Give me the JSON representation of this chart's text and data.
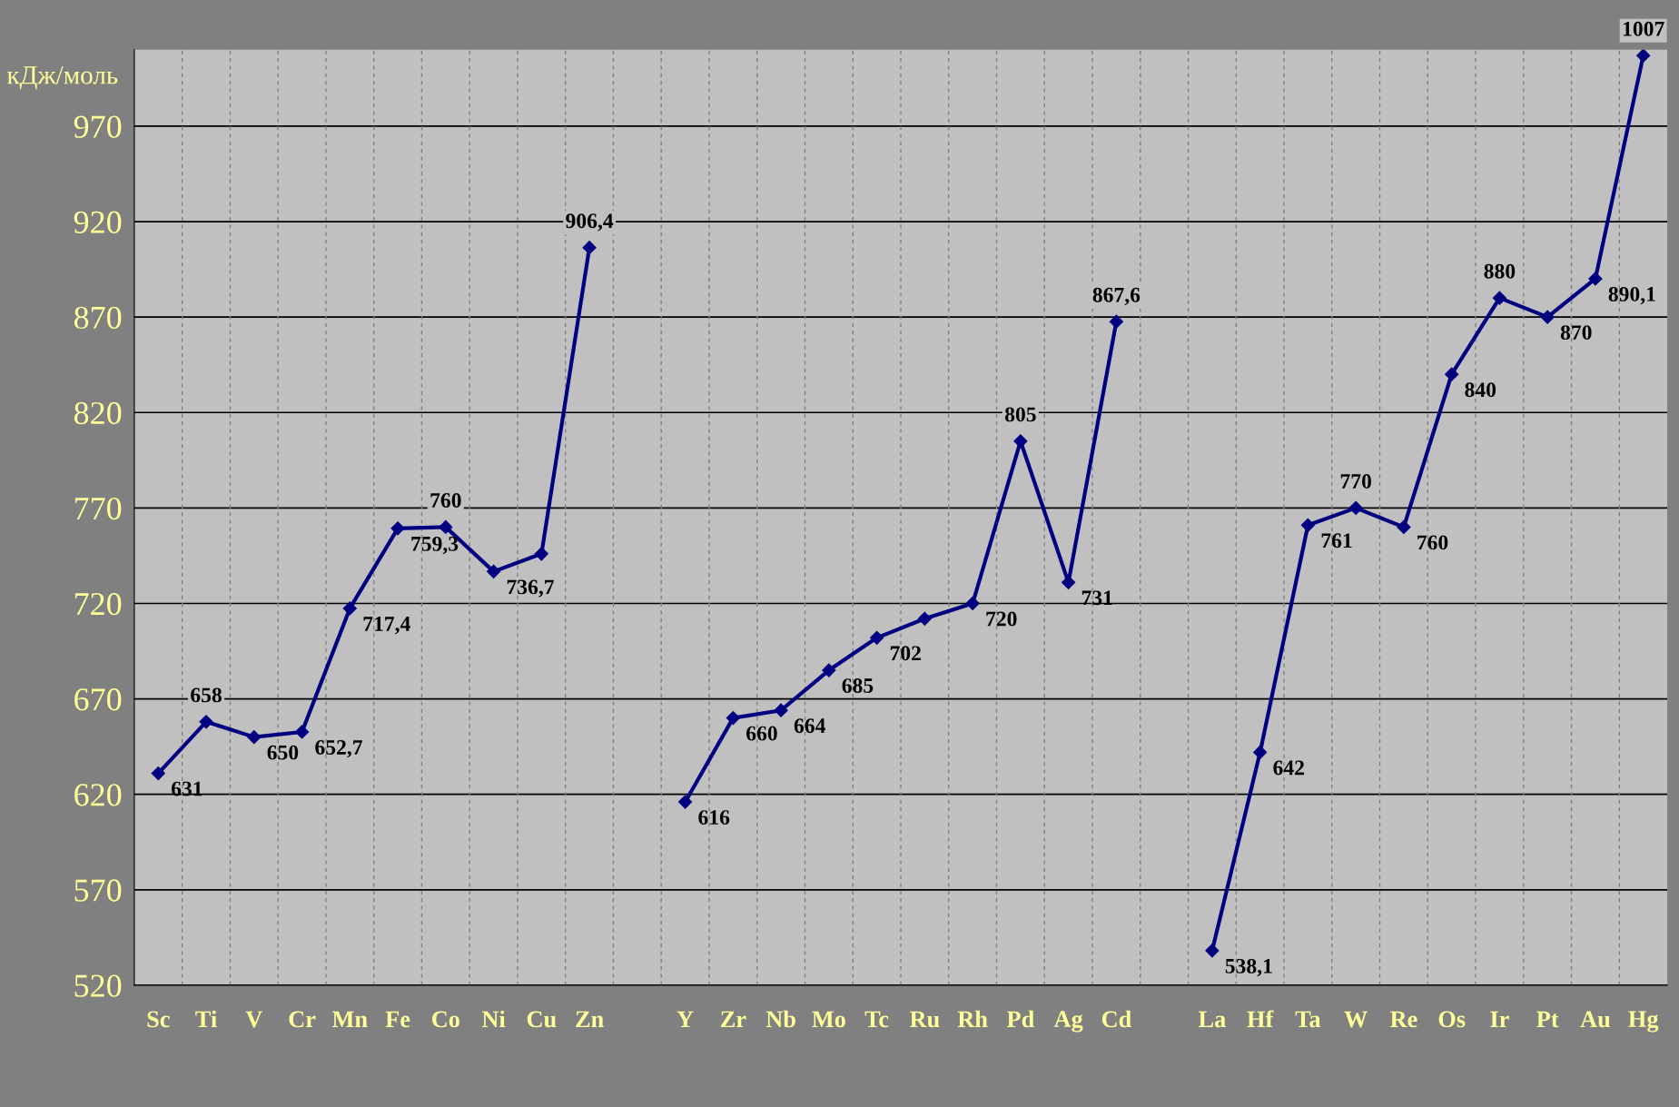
{
  "chart_data": {
    "type": "line",
    "ylabel": "кДж/моль",
    "categories": [
      "Sc",
      "Ti",
      "V",
      "Cr",
      "Mn",
      "Fe",
      "Co",
      "Ni",
      "Cu",
      "Zn",
      null,
      "Y",
      "Zr",
      "Nb",
      "Mo",
      "Tc",
      "Ru",
      "Rh",
      "Pd",
      "Ag",
      "Cd",
      null,
      "La",
      "Hf",
      "Ta",
      "W",
      "Re",
      "Os",
      "Ir",
      "Pt",
      "Au",
      "Hg"
    ],
    "series": [
      {
        "color": "#000080",
        "values": [
          631,
          658,
          650,
          652.7,
          717.4,
          759.3,
          760,
          736.7,
          746,
          906.4,
          null,
          616,
          660,
          664,
          685,
          702,
          712,
          720,
          805,
          731,
          867.6,
          null,
          538.1,
          642,
          761,
          770,
          760,
          840,
          880,
          870,
          890.1,
          1007
        ],
        "value_labels": [
          "631",
          "658",
          "650",
          "652,7",
          "717,4",
          "759,3",
          "760",
          "736,7",
          null,
          "906,4",
          null,
          "616",
          "660",
          "664",
          "685",
          "702",
          null,
          "720",
          "805",
          "731",
          "867,6",
          null,
          "538,1",
          "642",
          "761",
          "770",
          "760",
          "840",
          "880",
          "870",
          "890,1",
          "1007"
        ]
      }
    ],
    "ylim": [
      520,
      1010
    ],
    "yticks": [
      520,
      570,
      620,
      670,
      720,
      770,
      820,
      870,
      920,
      970
    ],
    "grid": true,
    "marker": "diamond",
    "line_style": "solid",
    "legend": false
  }
}
